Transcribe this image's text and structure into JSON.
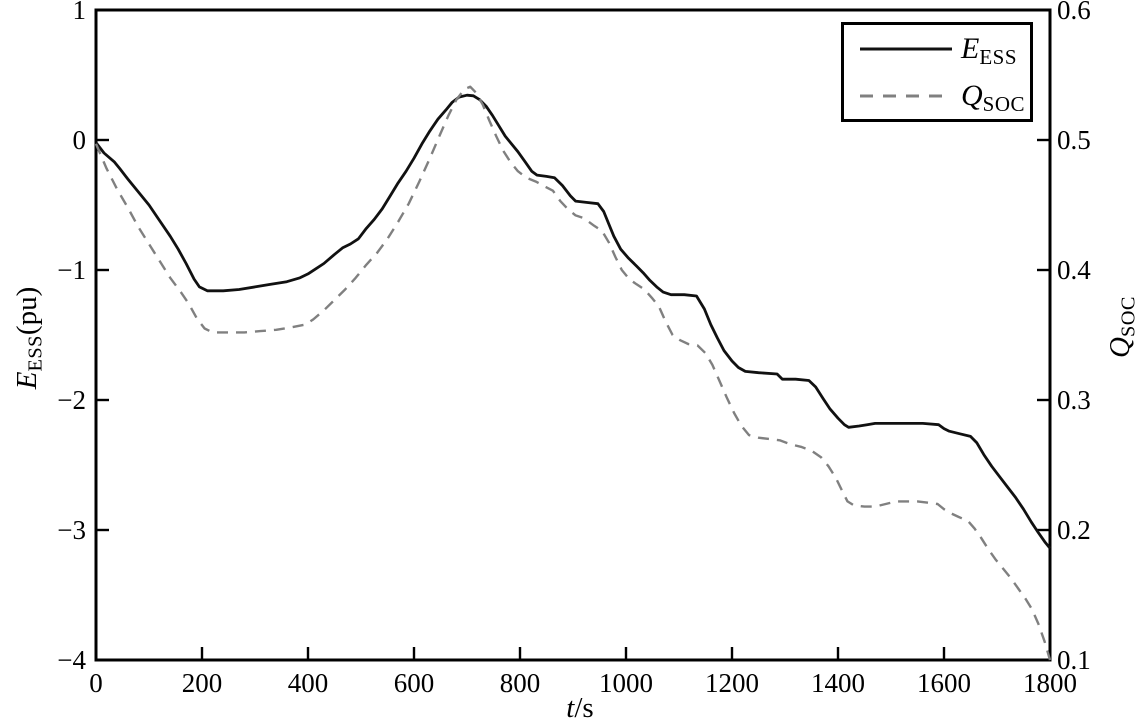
{
  "chart_data": {
    "type": "line",
    "title": "",
    "grid": false,
    "legend_position": "top-right",
    "xlabel": {
      "symbol": "t",
      "suffix": "/s"
    },
    "ylabel_left": {
      "symbol": "E",
      "subscript": "ESS",
      "suffix": "(pu)"
    },
    "ylabel_right": {
      "symbol": "Q",
      "subscript": "SOC",
      "suffix": ""
    },
    "xlim": [
      0,
      1800
    ],
    "ylim_left": [
      -4,
      1
    ],
    "ylim_right": [
      0.1,
      0.6
    ],
    "axis_color": "#000000",
    "x_ticks": [
      {
        "v": 0,
        "label": "0"
      },
      {
        "v": 200,
        "label": "200"
      },
      {
        "v": 400,
        "label": "400"
      },
      {
        "v": 600,
        "label": "600"
      },
      {
        "v": 800,
        "label": "800"
      },
      {
        "v": 1000,
        "label": "1000"
      },
      {
        "v": 1200,
        "label": "1200"
      },
      {
        "v": 1400,
        "label": "1400"
      },
      {
        "v": 1600,
        "label": "1600"
      },
      {
        "v": 1800,
        "label": "1800"
      }
    ],
    "y_ticks_left": [
      {
        "v": 1,
        "label": "1"
      },
      {
        "v": 0,
        "label": "0"
      },
      {
        "v": -1,
        "label": "−1"
      },
      {
        "v": -2,
        "label": "−2"
      },
      {
        "v": -3,
        "label": "−3"
      },
      {
        "v": -4,
        "label": "−4"
      }
    ],
    "y_ticks_right": [
      {
        "v": 0.6,
        "label": "0.6"
      },
      {
        "v": 0.5,
        "label": "0.5"
      },
      {
        "v": 0.4,
        "label": "0.4"
      },
      {
        "v": 0.3,
        "label": "0.3"
      },
      {
        "v": 0.2,
        "label": "0.2"
      },
      {
        "v": 0.1,
        "label": "0.1"
      }
    ],
    "legend": [
      {
        "symbol": "E",
        "subscript": "ESS",
        "style": "solid",
        "color": "#111111"
      },
      {
        "symbol": "Q",
        "subscript": "SOC",
        "style": "dashed",
        "color": "#808080"
      }
    ],
    "series": [
      {
        "name": "E_ESS",
        "axis": "left",
        "style": "solid",
        "color": "#111111",
        "points": [
          [
            0,
            -0.02
          ],
          [
            15,
            -0.1
          ],
          [
            35,
            -0.17
          ],
          [
            45,
            -0.22
          ],
          [
            60,
            -0.3
          ],
          [
            80,
            -0.4
          ],
          [
            100,
            -0.5
          ],
          [
            120,
            -0.62
          ],
          [
            140,
            -0.74
          ],
          [
            155,
            -0.84
          ],
          [
            170,
            -0.95
          ],
          [
            185,
            -1.07
          ],
          [
            195,
            -1.13
          ],
          [
            210,
            -1.16
          ],
          [
            240,
            -1.16
          ],
          [
            270,
            -1.15
          ],
          [
            300,
            -1.13
          ],
          [
            330,
            -1.11
          ],
          [
            360,
            -1.09
          ],
          [
            385,
            -1.06
          ],
          [
            400,
            -1.03
          ],
          [
            415,
            -0.99
          ],
          [
            430,
            -0.95
          ],
          [
            450,
            -0.88
          ],
          [
            465,
            -0.83
          ],
          [
            480,
            -0.8
          ],
          [
            495,
            -0.76
          ],
          [
            510,
            -0.68
          ],
          [
            525,
            -0.61
          ],
          [
            540,
            -0.53
          ],
          [
            555,
            -0.43
          ],
          [
            570,
            -0.33
          ],
          [
            585,
            -0.24
          ],
          [
            600,
            -0.14
          ],
          [
            615,
            -0.03
          ],
          [
            630,
            0.07
          ],
          [
            645,
            0.16
          ],
          [
            660,
            0.23
          ],
          [
            672,
            0.29
          ],
          [
            685,
            0.33
          ],
          [
            700,
            0.345
          ],
          [
            712,
            0.34
          ],
          [
            724,
            0.31
          ],
          [
            736,
            0.26
          ],
          [
            748,
            0.19
          ],
          [
            760,
            0.11
          ],
          [
            772,
            0.03
          ],
          [
            784,
            -0.03
          ],
          [
            796,
            -0.09
          ],
          [
            810,
            -0.17
          ],
          [
            822,
            -0.24
          ],
          [
            832,
            -0.27
          ],
          [
            850,
            -0.28
          ],
          [
            865,
            -0.29
          ],
          [
            880,
            -0.35
          ],
          [
            895,
            -0.43
          ],
          [
            905,
            -0.47
          ],
          [
            925,
            -0.48
          ],
          [
            947,
            -0.49
          ],
          [
            958,
            -0.55
          ],
          [
            968,
            -0.65
          ],
          [
            977,
            -0.74
          ],
          [
            990,
            -0.84
          ],
          [
            1005,
            -0.91
          ],
          [
            1020,
            -0.97
          ],
          [
            1032,
            -1.02
          ],
          [
            1045,
            -1.08
          ],
          [
            1058,
            -1.13
          ],
          [
            1070,
            -1.17
          ],
          [
            1085,
            -1.19
          ],
          [
            1110,
            -1.19
          ],
          [
            1133,
            -1.2
          ],
          [
            1148,
            -1.3
          ],
          [
            1160,
            -1.42
          ],
          [
            1172,
            -1.52
          ],
          [
            1185,
            -1.62
          ],
          [
            1200,
            -1.7
          ],
          [
            1212,
            -1.75
          ],
          [
            1225,
            -1.78
          ],
          [
            1250,
            -1.79
          ],
          [
            1285,
            -1.8
          ],
          [
            1295,
            -1.84
          ],
          [
            1320,
            -1.84
          ],
          [
            1345,
            -1.85
          ],
          [
            1358,
            -1.9
          ],
          [
            1372,
            -1.99
          ],
          [
            1385,
            -2.07
          ],
          [
            1400,
            -2.14
          ],
          [
            1412,
            -2.19
          ],
          [
            1420,
            -2.21
          ],
          [
            1440,
            -2.2
          ],
          [
            1455,
            -2.19
          ],
          [
            1470,
            -2.18
          ],
          [
            1500,
            -2.18
          ],
          [
            1530,
            -2.18
          ],
          [
            1560,
            -2.18
          ],
          [
            1590,
            -2.19
          ],
          [
            1600,
            -2.22
          ],
          [
            1610,
            -2.24
          ],
          [
            1630,
            -2.26
          ],
          [
            1650,
            -2.28
          ],
          [
            1662,
            -2.33
          ],
          [
            1675,
            -2.42
          ],
          [
            1690,
            -2.51
          ],
          [
            1705,
            -2.59
          ],
          [
            1720,
            -2.67
          ],
          [
            1735,
            -2.75
          ],
          [
            1750,
            -2.84
          ],
          [
            1765,
            -2.94
          ],
          [
            1778,
            -3.02
          ],
          [
            1790,
            -3.09
          ],
          [
            1800,
            -3.14
          ]
        ]
      },
      {
        "name": "Q_SOC",
        "axis": "right",
        "style": "dashed",
        "color": "#808080",
        "points": [
          [
            0,
            0.497
          ],
          [
            20,
            0.478
          ],
          [
            40,
            0.462
          ],
          [
            60,
            0.448
          ],
          [
            80,
            0.433
          ],
          [
            100,
            0.42
          ],
          [
            120,
            0.407
          ],
          [
            140,
            0.394
          ],
          [
            160,
            0.383
          ],
          [
            175,
            0.374
          ],
          [
            190,
            0.363
          ],
          [
            205,
            0.355
          ],
          [
            220,
            0.352
          ],
          [
            250,
            0.352
          ],
          [
            280,
            0.352
          ],
          [
            310,
            0.353
          ],
          [
            340,
            0.354
          ],
          [
            370,
            0.356
          ],
          [
            395,
            0.358
          ],
          [
            410,
            0.362
          ],
          [
            430,
            0.369
          ],
          [
            450,
            0.377
          ],
          [
            470,
            0.385
          ],
          [
            490,
            0.394
          ],
          [
            510,
            0.404
          ],
          [
            530,
            0.413
          ],
          [
            550,
            0.424
          ],
          [
            570,
            0.437
          ],
          [
            590,
            0.451
          ],
          [
            610,
            0.468
          ],
          [
            630,
            0.486
          ],
          [
            650,
            0.505
          ],
          [
            665,
            0.519
          ],
          [
            680,
            0.531
          ],
          [
            695,
            0.539
          ],
          [
            706,
            0.541
          ],
          [
            718,
            0.536
          ],
          [
            730,
            0.527
          ],
          [
            742,
            0.515
          ],
          [
            755,
            0.503
          ],
          [
            768,
            0.492
          ],
          [
            782,
            0.483
          ],
          [
            796,
            0.476
          ],
          [
            812,
            0.471
          ],
          [
            830,
            0.468
          ],
          [
            848,
            0.464
          ],
          [
            862,
            0.461
          ],
          [
            876,
            0.453
          ],
          [
            890,
            0.447
          ],
          [
            905,
            0.442
          ],
          [
            920,
            0.44
          ],
          [
            940,
            0.434
          ],
          [
            955,
            0.43
          ],
          [
            968,
            0.421
          ],
          [
            980,
            0.41
          ],
          [
            992,
            0.4
          ],
          [
            1006,
            0.393
          ],
          [
            1020,
            0.389
          ],
          [
            1035,
            0.385
          ],
          [
            1050,
            0.378
          ],
          [
            1062,
            0.372
          ],
          [
            1075,
            0.36
          ],
          [
            1088,
            0.35
          ],
          [
            1102,
            0.346
          ],
          [
            1118,
            0.343
          ],
          [
            1135,
            0.342
          ],
          [
            1150,
            0.336
          ],
          [
            1163,
            0.327
          ],
          [
            1176,
            0.315
          ],
          [
            1190,
            0.302
          ],
          [
            1204,
            0.29
          ],
          [
            1218,
            0.28
          ],
          [
            1232,
            0.273
          ],
          [
            1250,
            0.271
          ],
          [
            1270,
            0.27
          ],
          [
            1290,
            0.269
          ],
          [
            1310,
            0.266
          ],
          [
            1330,
            0.264
          ],
          [
            1350,
            0.261
          ],
          [
            1368,
            0.256
          ],
          [
            1382,
            0.249
          ],
          [
            1396,
            0.24
          ],
          [
            1408,
            0.23
          ],
          [
            1418,
            0.222
          ],
          [
            1430,
            0.219
          ],
          [
            1450,
            0.218
          ],
          [
            1470,
            0.218
          ],
          [
            1490,
            0.22
          ],
          [
            1510,
            0.222
          ],
          [
            1530,
            0.222
          ],
          [
            1550,
            0.222
          ],
          [
            1570,
            0.221
          ],
          [
            1588,
            0.22
          ],
          [
            1600,
            0.216
          ],
          [
            1612,
            0.213
          ],
          [
            1628,
            0.21
          ],
          [
            1645,
            0.207
          ],
          [
            1658,
            0.201
          ],
          [
            1670,
            0.194
          ],
          [
            1684,
            0.185
          ],
          [
            1698,
            0.177
          ],
          [
            1712,
            0.17
          ],
          [
            1726,
            0.163
          ],
          [
            1740,
            0.155
          ],
          [
            1754,
            0.147
          ],
          [
            1766,
            0.139
          ],
          [
            1778,
            0.128
          ],
          [
            1790,
            0.114
          ],
          [
            1800,
            0.1
          ]
        ]
      }
    ]
  }
}
